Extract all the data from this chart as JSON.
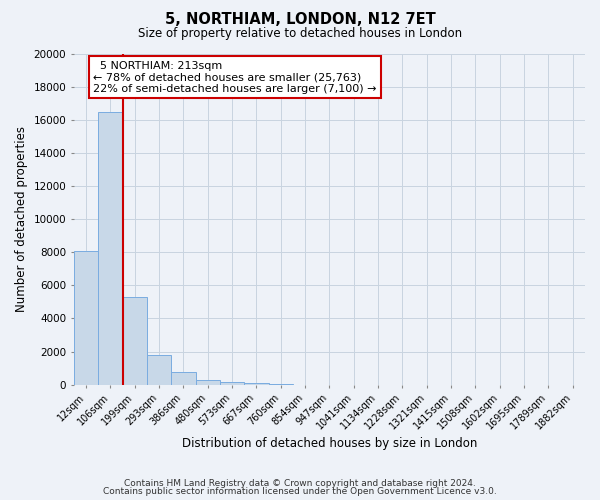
{
  "title": "5, NORTHIAM, LONDON, N12 7ET",
  "subtitle": "Size of property relative to detached houses in London",
  "xlabel": "Distribution of detached houses by size in London",
  "ylabel": "Number of detached properties",
  "footnote1": "Contains HM Land Registry data © Crown copyright and database right 2024.",
  "footnote2": "Contains public sector information licensed under the Open Government Licence v3.0.",
  "bar_labels": [
    "12sqm",
    "106sqm",
    "199sqm",
    "293sqm",
    "386sqm",
    "480sqm",
    "573sqm",
    "667sqm",
    "760sqm",
    "854sqm",
    "947sqm",
    "1041sqm",
    "1134sqm",
    "1228sqm",
    "1321sqm",
    "1415sqm",
    "1508sqm",
    "1602sqm",
    "1695sqm",
    "1789sqm",
    "1882sqm"
  ],
  "bar_values": [
    8100,
    16500,
    5300,
    1800,
    750,
    300,
    150,
    100,
    50,
    0,
    0,
    0,
    0,
    0,
    0,
    0,
    0,
    0,
    0,
    0,
    0
  ],
  "bar_color": "#c8d8e8",
  "bar_edgecolor": "#7aace0",
  "property_size": "213sqm",
  "property_name": "5 NORTHIAM",
  "pct_smaller": 78,
  "n_smaller": 25763,
  "pct_larger_semi": 22,
  "n_larger_semi": 7100,
  "ylim": [
    0,
    20000
  ],
  "yticks": [
    0,
    2000,
    4000,
    6000,
    8000,
    10000,
    12000,
    14000,
    16000,
    18000,
    20000
  ],
  "grid_color": "#c8d4e0",
  "background_color": "#eef2f8"
}
